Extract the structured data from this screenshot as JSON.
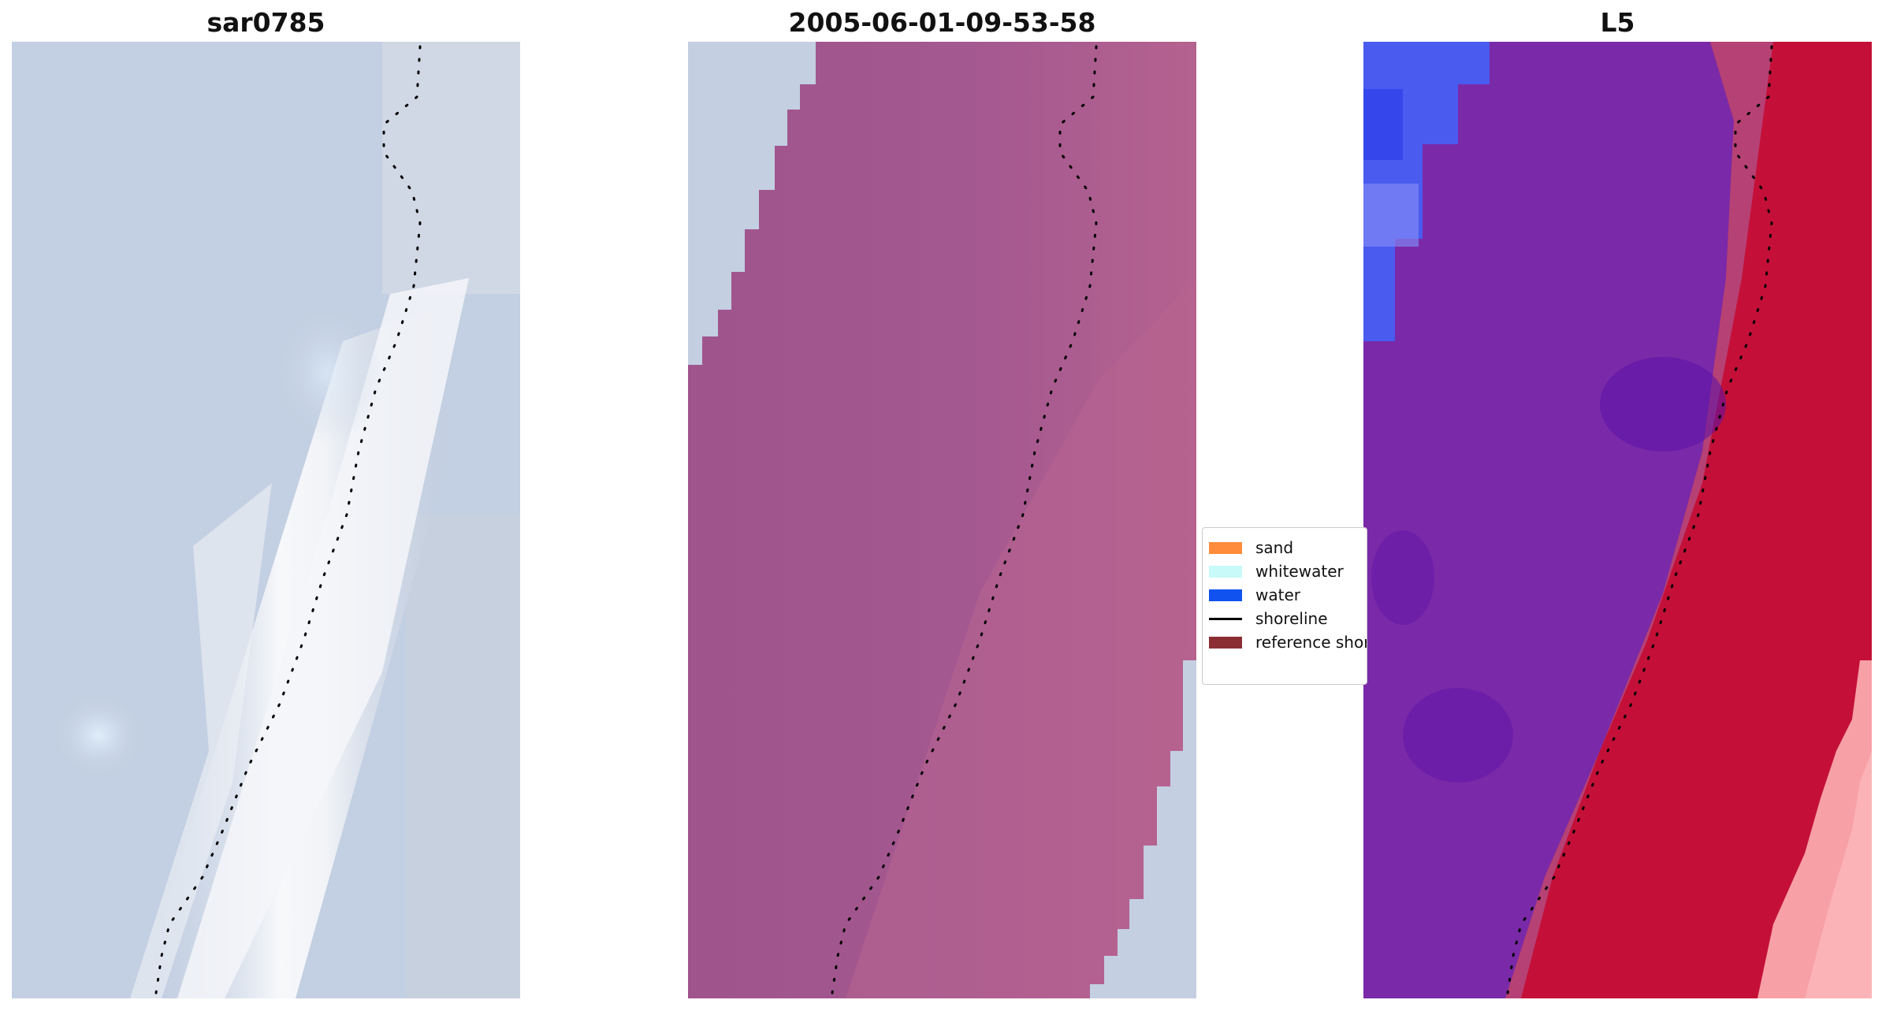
{
  "panels": [
    {
      "title": "sar0785"
    },
    {
      "title": "2005-06-01-09-53-58"
    },
    {
      "title": "L5"
    }
  ],
  "legend": {
    "items": [
      {
        "label": "sand",
        "color": "#ff8c3a",
        "kind": "patch"
      },
      {
        "label": "whitewater",
        "color": "#c8fafa",
        "kind": "patch"
      },
      {
        "label": "water",
        "color": "#0f52f0",
        "kind": "patch"
      },
      {
        "label": "shoreline",
        "color": "#000000",
        "kind": "line"
      },
      {
        "label": "reference shoreline",
        "color": "#8b2e34",
        "kind": "patch"
      }
    ]
  },
  "colors": {
    "panel1_base": "#c3cfe2",
    "panel1_surf": "#f6f7f9",
    "panel2_overlay": "#a0548c",
    "panel2_overlay_light": "#b4628f",
    "panel2_background": "#c4cfe2",
    "panel3_blue": "#4a5bf0",
    "panel3_purple": "#7a22a8",
    "panel3_red": "#c41038",
    "panel3_pink": "#f7a0a6"
  }
}
